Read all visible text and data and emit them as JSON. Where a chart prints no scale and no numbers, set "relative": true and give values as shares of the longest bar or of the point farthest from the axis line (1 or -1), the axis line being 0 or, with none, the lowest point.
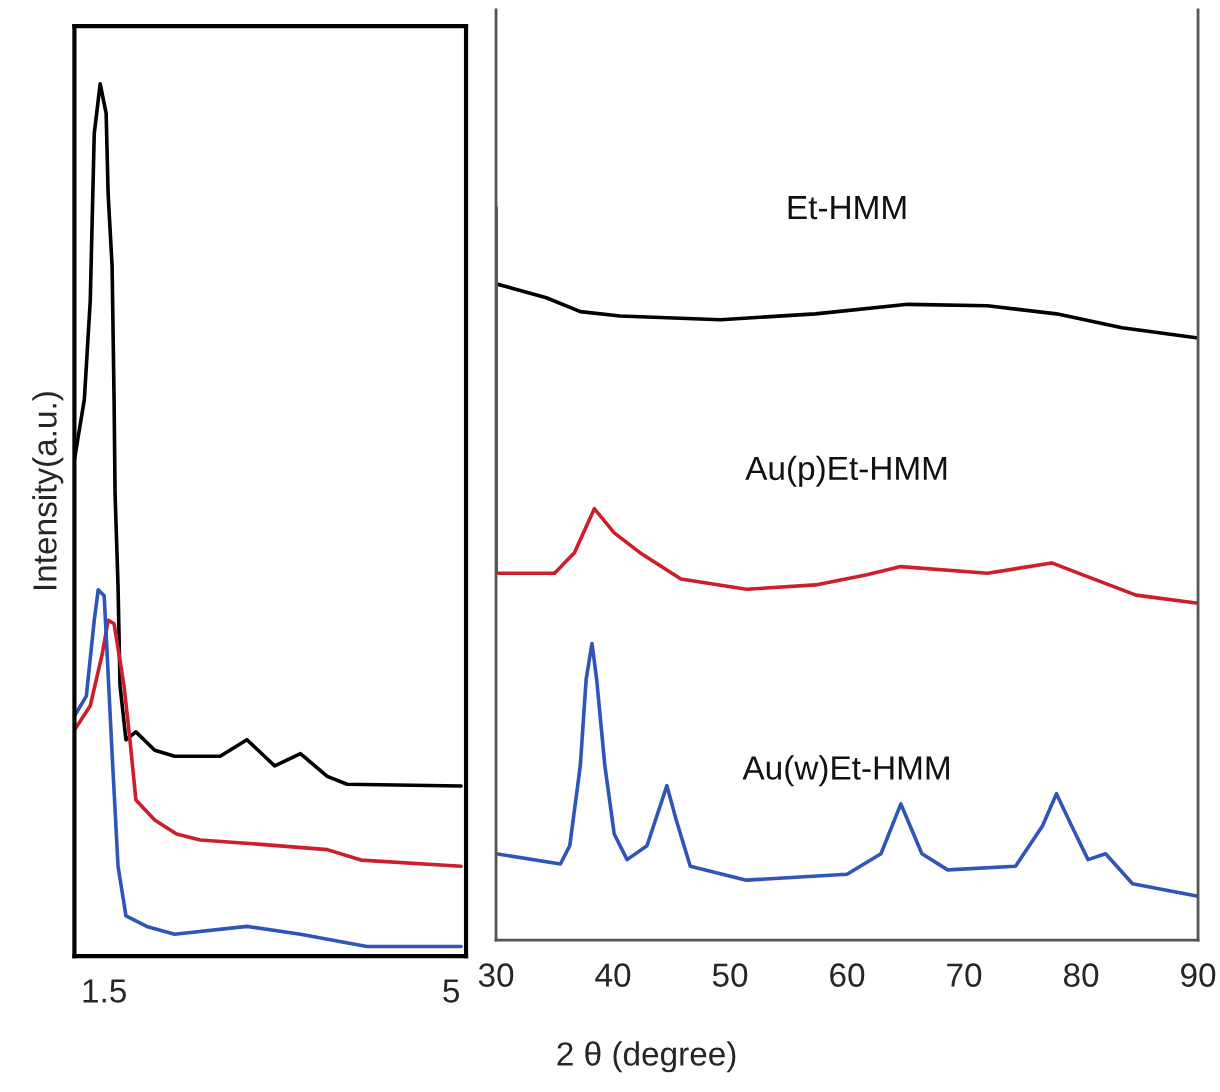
{
  "chart_data": [
    {
      "type": "line",
      "relative": true,
      "ylabel": "Intensity(a.u.)",
      "xlim": [
        1.2,
        5.15
      ],
      "xticks": [
        1.5,
        5
      ],
      "tick_labels": "x",
      "grid": false,
      "legend": false,
      "series": [
        {
          "color": "#000000",
          "x": [
            1.2,
            1.3,
            1.36,
            1.4,
            1.46,
            1.52,
            1.54,
            1.58,
            1.6,
            1.61,
            1.64,
            1.66,
            1.72,
            1.82,
            2.01,
            2.21,
            2.67,
            2.94,
            3.22,
            3.48,
            3.75,
            3.95,
            5.1
          ],
          "values": [
            0.569,
            0.638,
            0.752,
            0.943,
            1.0,
            0.966,
            0.874,
            0.791,
            0.638,
            0.53,
            0.424,
            0.31,
            0.248,
            0.257,
            0.236,
            0.229,
            0.229,
            0.248,
            0.218,
            0.232,
            0.206,
            0.197,
            0.195
          ]
        },
        {
          "color": "#cc1f2a",
          "x": [
            1.2,
            1.36,
            1.48,
            1.54,
            1.6,
            1.7,
            1.76,
            1.82,
            2.01,
            2.23,
            2.47,
            3.08,
            3.75,
            4.09,
            5.1
          ],
          "values": [
            0.259,
            0.287,
            0.346,
            0.385,
            0.381,
            0.31,
            0.248,
            0.179,
            0.156,
            0.14,
            0.133,
            0.128,
            0.122,
            0.11,
            0.103
          ]
        },
        {
          "color": "#2f55b8",
          "x": [
            1.2,
            1.32,
            1.4,
            1.44,
            1.5,
            1.52,
            1.58,
            1.64,
            1.72,
            1.93,
            2.21,
            2.94,
            3.48,
            4.15,
            5.1
          ],
          "values": [
            0.275,
            0.298,
            0.385,
            0.42,
            0.413,
            0.369,
            0.232,
            0.103,
            0.046,
            0.034,
            0.025,
            0.034,
            0.025,
            0.011,
            0.011
          ]
        }
      ]
    },
    {
      "type": "line",
      "relative": true,
      "xlabel": "2 θ (degree)",
      "xlim": [
        30,
        90
      ],
      "xticks": [
        30,
        40,
        50,
        60,
        70,
        80,
        90
      ],
      "tick_labels": "x",
      "grid": false,
      "legend": false,
      "series": [
        {
          "name": "Et-HMM",
          "color": "#000000",
          "x": [
            30,
            34.3,
            37.2,
            40.6,
            49.2,
            57.3,
            65.2,
            72.0,
            77.9,
            83.5,
            90.0
          ],
          "values": [
            0.896,
            0.877,
            0.858,
            0.852,
            0.847,
            0.855,
            0.868,
            0.866,
            0.855,
            0.836,
            0.822
          ]
        },
        {
          "name": "Au(p)Et-HMM",
          "color": "#cc1f2a",
          "x": [
            30,
            30,
            35.0,
            36.7,
            38.4,
            40.1,
            42.3,
            45.8,
            51.4,
            57.3,
            61.7,
            64.6,
            72.0,
            77.5,
            80.1,
            84.7,
            90.0
          ],
          "values": [
            1.0,
            0.501,
            0.501,
            0.529,
            0.589,
            0.556,
            0.529,
            0.493,
            0.479,
            0.485,
            0.499,
            0.51,
            0.501,
            0.515,
            0.499,
            0.471,
            0.46
          ]
        },
        {
          "name": "Au(w)Et-HMM",
          "color": "#2f55b8",
          "x": [
            30,
            35.5,
            36.3,
            37.2,
            37.7,
            38.2,
            38.6,
            39.3,
            40.1,
            41.2,
            42.9,
            44.6,
            45.4,
            46.6,
            51.4,
            60.0,
            62.9,
            64.6,
            66.4,
            68.6,
            74.4,
            76.7,
            77.9,
            79.2,
            80.6,
            82.1,
            84.4,
            90.0
          ],
          "values": [
            0.118,
            0.104,
            0.129,
            0.238,
            0.356,
            0.405,
            0.356,
            0.238,
            0.145,
            0.11,
            0.129,
            0.211,
            0.164,
            0.101,
            0.082,
            0.09,
            0.118,
            0.186,
            0.118,
            0.096,
            0.101,
            0.156,
            0.2,
            0.156,
            0.11,
            0.118,
            0.077,
            0.06
          ]
        }
      ]
    }
  ]
}
